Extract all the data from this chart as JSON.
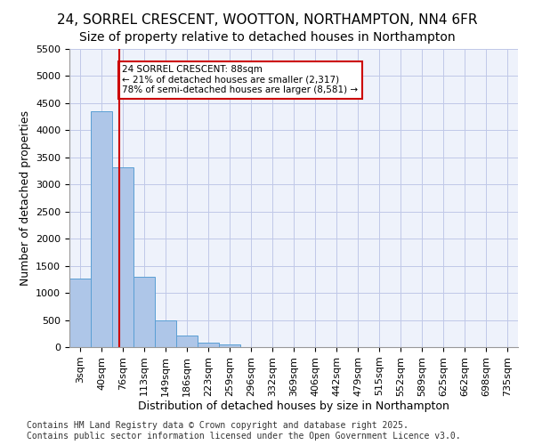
{
  "title_line1": "24, SORREL CRESCENT, WOOTTON, NORTHAMPTON, NN4 6FR",
  "title_line2": "Size of property relative to detached houses in Northampton",
  "xlabel": "Distribution of detached houses by size in Northampton",
  "ylabel": "Number of detached properties",
  "footer_line1": "Contains HM Land Registry data © Crown copyright and database right 2025.",
  "footer_line2": "Contains public sector information licensed under the Open Government Licence v3.0.",
  "bins": [
    "3sqm",
    "40sqm",
    "76sqm",
    "113sqm",
    "149sqm",
    "186sqm",
    "223sqm",
    "259sqm",
    "296sqm",
    "332sqm",
    "369sqm",
    "406sqm",
    "442sqm",
    "479sqm",
    "515sqm",
    "552sqm",
    "589sqm",
    "625sqm",
    "662sqm",
    "698sqm",
    "735sqm"
  ],
  "bar_values": [
    1270,
    4350,
    3320,
    1290,
    500,
    220,
    85,
    55,
    0,
    0,
    0,
    0,
    0,
    0,
    0,
    0,
    0,
    0,
    0,
    0
  ],
  "bar_color": "#aec6e8",
  "bar_edge_color": "#5a9fd4",
  "bg_color": "#eef2fb",
  "grid_color": "#c0c8e8",
  "vline_x": 1,
  "vline_color": "#cc0000",
  "annotation_text": "24 SORREL CRESCENT: 88sqm\n← 21% of detached houses are smaller (2,317)\n78% of semi-detached houses are larger (8,581) →",
  "annotation_box_color": "#cc0000",
  "ylim": [
    0,
    5500
  ],
  "yticks": [
    0,
    500,
    1000,
    1500,
    2000,
    2500,
    3000,
    3500,
    4000,
    4500,
    5000,
    5500
  ],
  "title_fontsize": 11,
  "subtitle_fontsize": 10,
  "axis_fontsize": 9,
  "tick_fontsize": 8,
  "footer_fontsize": 7
}
